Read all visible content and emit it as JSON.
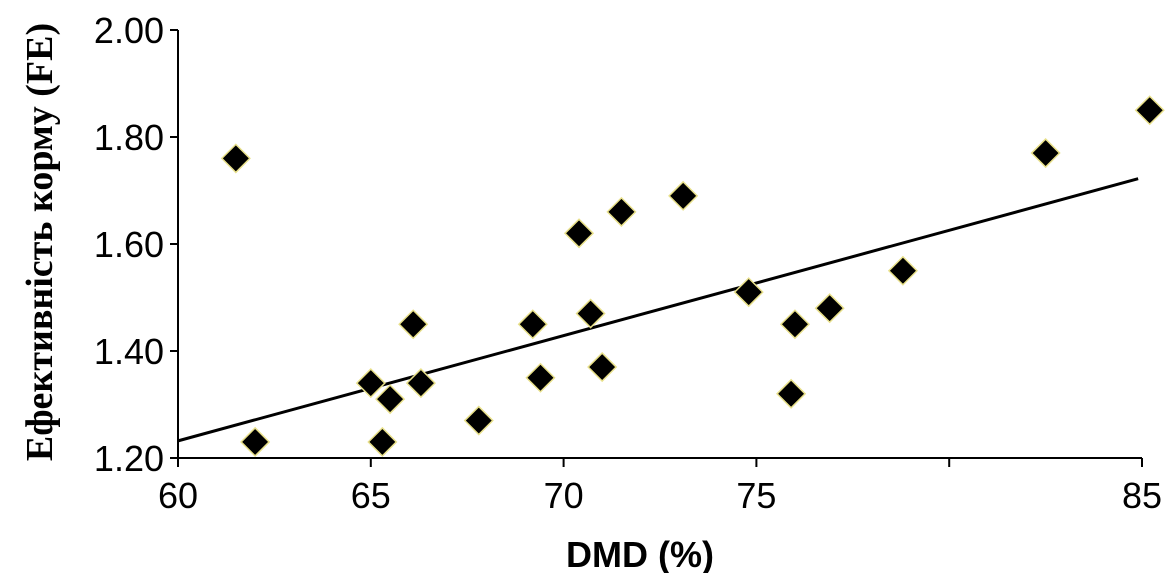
{
  "chart_data": {
    "type": "scatter",
    "xlabel": "DMD (%)",
    "ylabel": "Ефективність корму (FE)",
    "xlim": [
      60,
      85
    ],
    "ylim": [
      1.2,
      2.0
    ],
    "x_ticks": [
      60,
      65,
      70,
      75,
      80,
      85
    ],
    "x_tick_labels": [
      "60",
      "65",
      "70",
      "75",
      "",
      "85"
    ],
    "y_ticks": [
      1.2,
      1.4,
      1.6,
      1.8,
      2.0
    ],
    "y_tick_labels": [
      "1.20",
      "1.40",
      "1.60",
      "1.80",
      "2.00"
    ],
    "grid": false,
    "marker": "diamond",
    "points": [
      {
        "x": 61.5,
        "y": 1.76
      },
      {
        "x": 62.0,
        "y": 1.23
      },
      {
        "x": 65.0,
        "y": 1.34
      },
      {
        "x": 65.3,
        "y": 1.23
      },
      {
        "x": 65.5,
        "y": 1.31
      },
      {
        "x": 66.1,
        "y": 1.45
      },
      {
        "x": 66.3,
        "y": 1.34
      },
      {
        "x": 67.8,
        "y": 1.27
      },
      {
        "x": 69.2,
        "y": 1.45
      },
      {
        "x": 69.4,
        "y": 1.35
      },
      {
        "x": 70.4,
        "y": 1.62
      },
      {
        "x": 70.7,
        "y": 1.47
      },
      {
        "x": 71.0,
        "y": 1.37
      },
      {
        "x": 71.5,
        "y": 1.66
      },
      {
        "x": 73.1,
        "y": 1.69
      },
      {
        "x": 74.8,
        "y": 1.51
      },
      {
        "x": 75.9,
        "y": 1.32
      },
      {
        "x": 76.0,
        "y": 1.45
      },
      {
        "x": 76.9,
        "y": 1.48
      },
      {
        "x": 78.8,
        "y": 1.55
      },
      {
        "x": 82.5,
        "y": 1.77
      },
      {
        "x": 85.2,
        "y": 1.85
      }
    ],
    "trendline": {
      "x": [
        60,
        84.9
      ],
      "y": [
        1.232,
        1.722
      ]
    }
  }
}
